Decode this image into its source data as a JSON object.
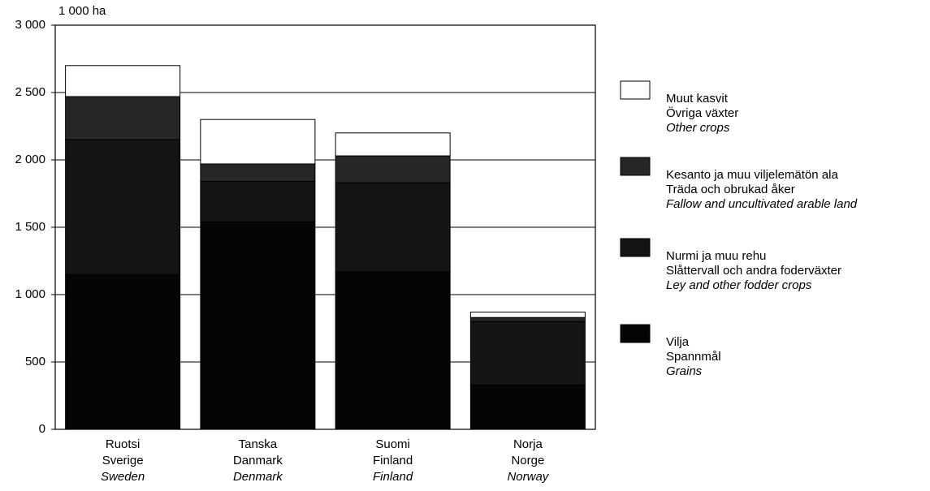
{
  "chart_data": {
    "type": "stacked_bar",
    "y_label": "1 000 ha",
    "categories": [
      [
        "Ruotsi",
        "Sverige",
        "Sweden"
      ],
      [
        "Tanska",
        "Danmark",
        "Denmark"
      ],
      [
        "Suomi",
        "Finland",
        "Finland"
      ],
      [
        "Norja",
        "Norge",
        "Norway"
      ]
    ],
    "series": [
      {
        "name": [
          "Vilja",
          "Spannmål",
          "Grains"
        ],
        "color": "#050505",
        "values": [
          1150,
          1540,
          1170,
          330
        ]
      },
      {
        "name": [
          "Nurmi ja muu rehu",
          "Slåttervall och andra foderväxter",
          "Ley and other fodder crops"
        ],
        "color": "#141414",
        "values": [
          1000,
          300,
          660,
          470
        ]
      },
      {
        "name": [
          "Kesanto ja muu viljelemätön ala",
          "Träda och obrukad åker",
          "Fallow and uncultivated arable land"
        ],
        "color": "#262626",
        "values": [
          320,
          130,
          200,
          30
        ]
      },
      {
        "name": [
          "Muut kasvit",
          "Övriga växter",
          "Other crops"
        ],
        "color": "#ffffff",
        "values": [
          230,
          330,
          170,
          40
        ]
      }
    ],
    "ylim": [
      0,
      3000
    ],
    "yticks": [
      0,
      500,
      {
        "value": 1000,
        "label": "1 000"
      },
      {
        "value": 1500,
        "label": "1 500"
      },
      {
        "value": 2000,
        "label": "2 000"
      },
      {
        "value": 2500,
        "label": "2 500"
      },
      {
        "value": 3000,
        "label": "3 000"
      }
    ],
    "grid": true
  }
}
